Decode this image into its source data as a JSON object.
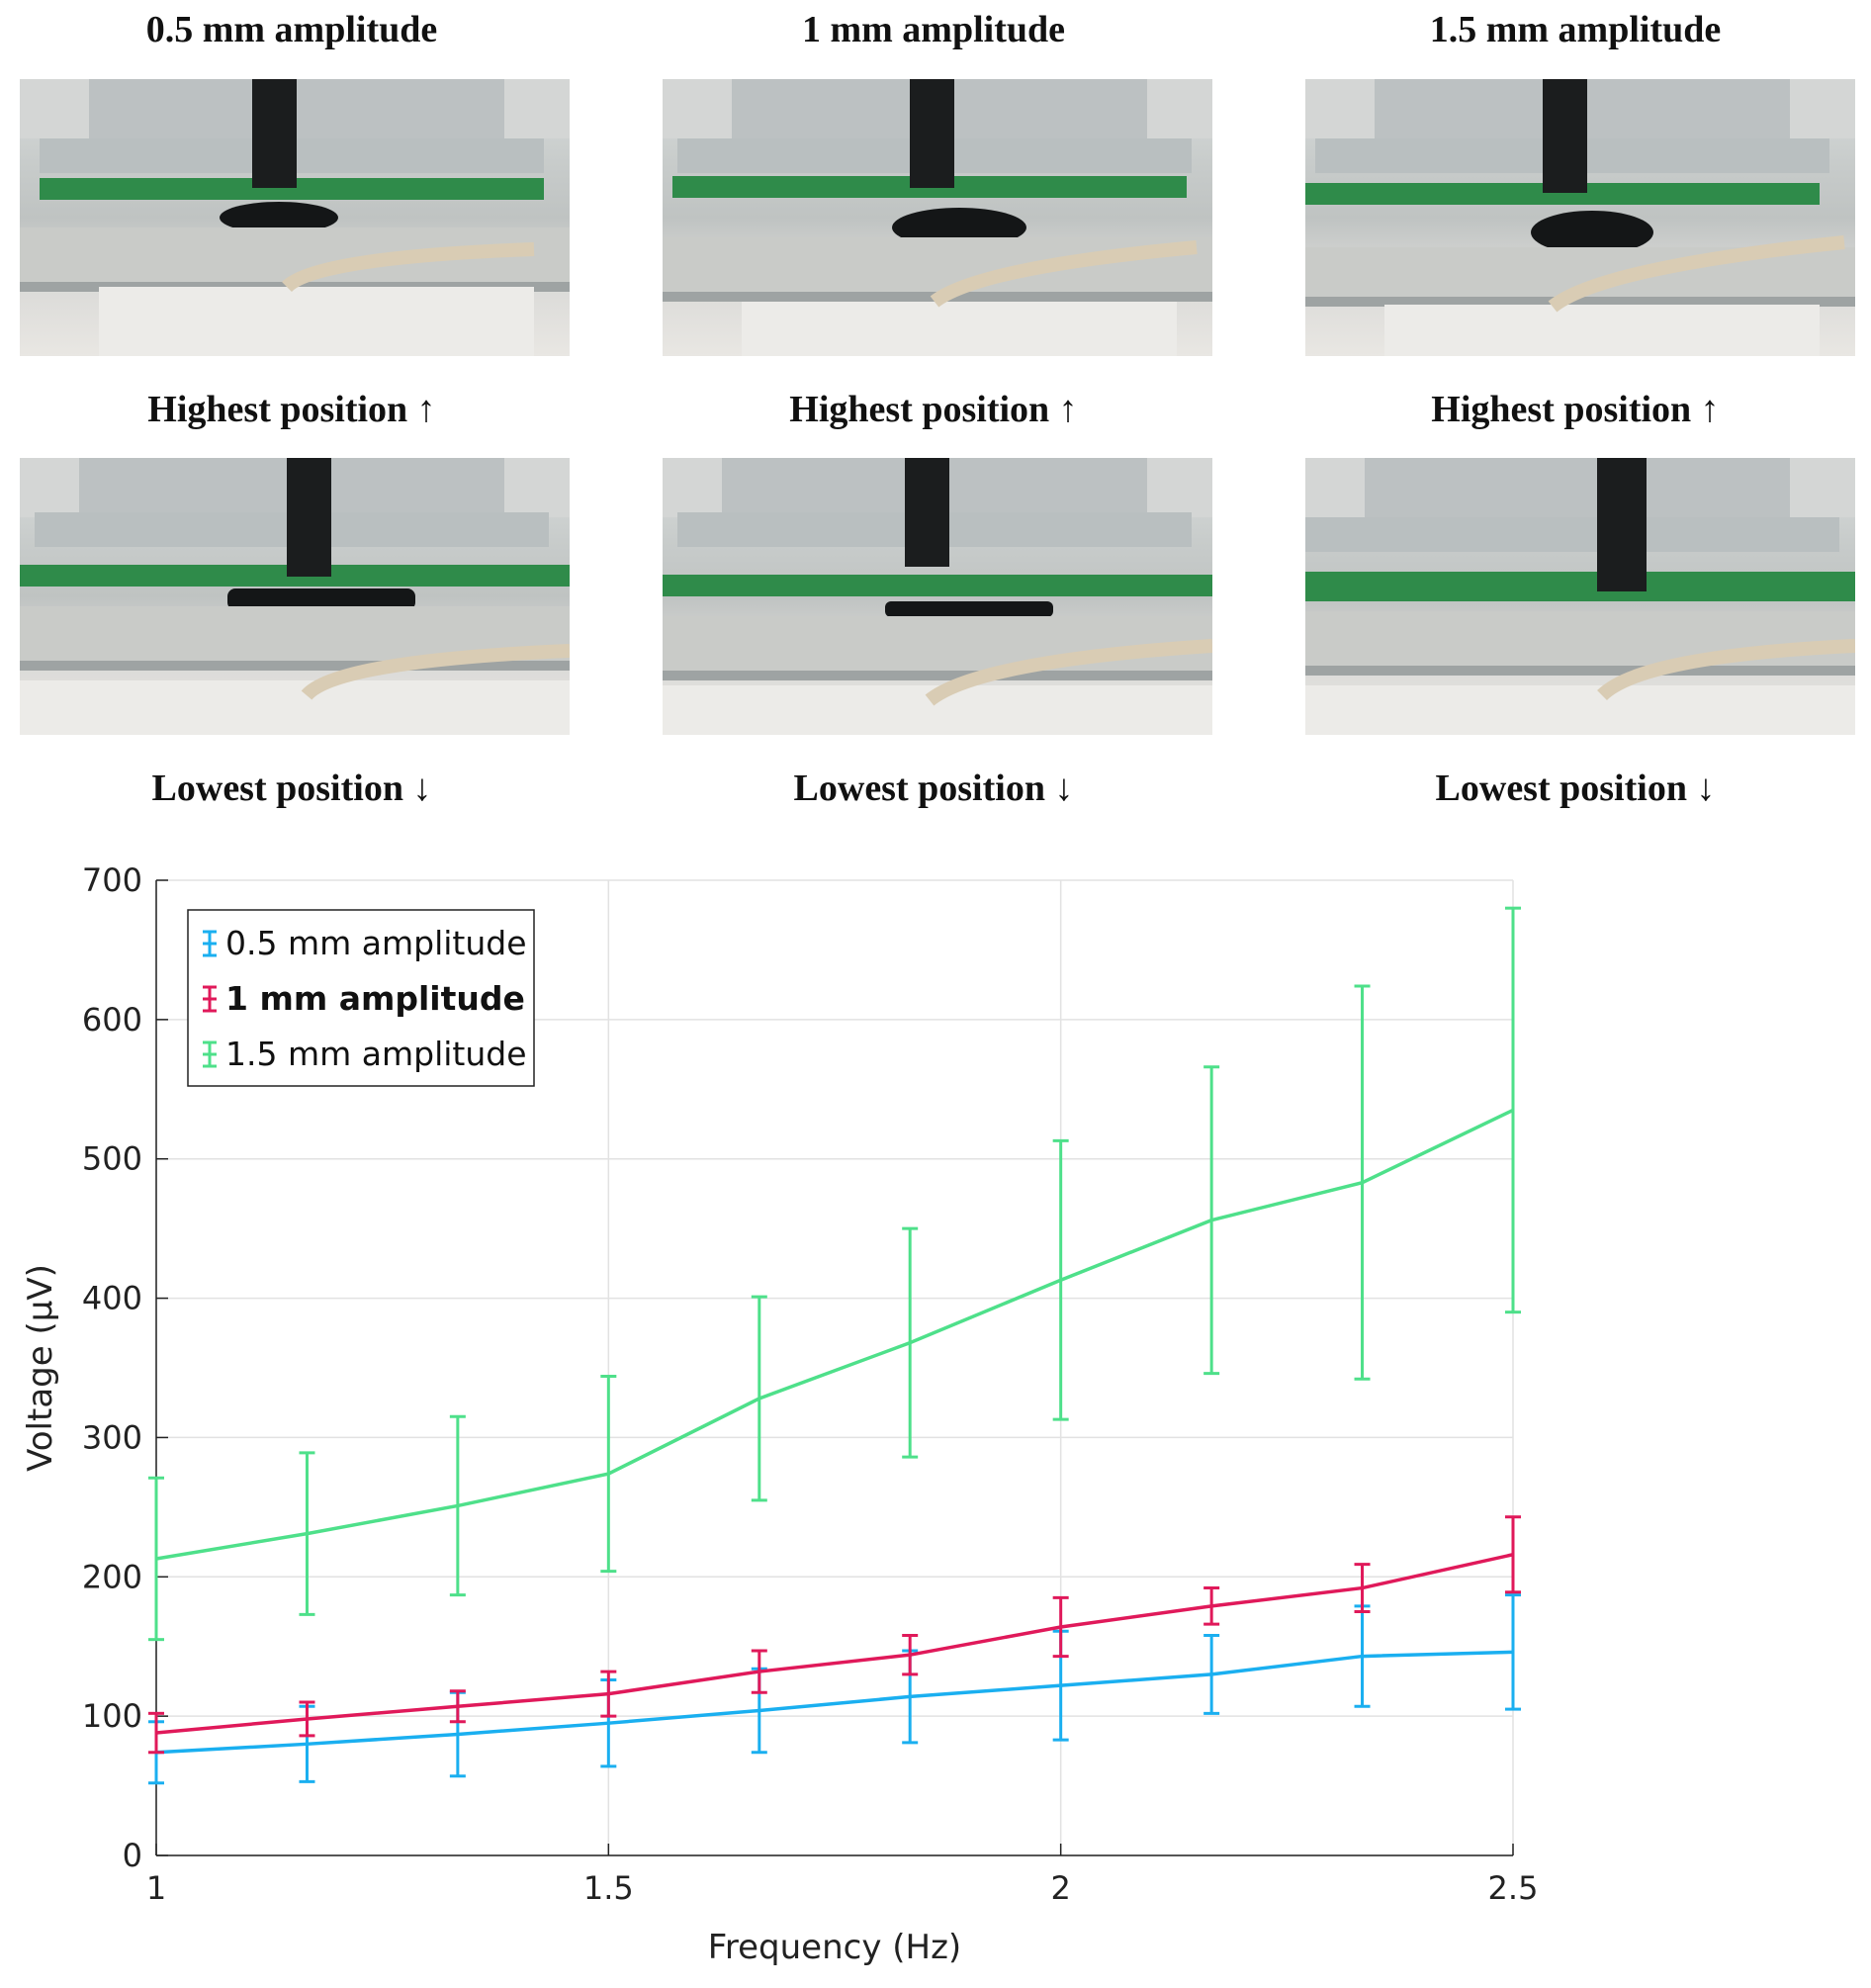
{
  "panels": {
    "columns": [
      {
        "title": "0.5 mm amplitude",
        "top_caption": "Highest position ↑",
        "bottom_caption": "Lowest position ↓"
      },
      {
        "title": "1 mm amplitude",
        "top_caption": "Highest position ↑",
        "bottom_caption": "Lowest position ↓"
      },
      {
        "title": "1.5 mm amplitude",
        "top_caption": "Highest position ↑",
        "bottom_caption": "Lowest position ↓"
      }
    ]
  },
  "chart_data": {
    "type": "line",
    "xlabel": "Frequency (Hz)",
    "ylabel": "Voltage (µV)",
    "xlim": [
      1,
      2.5
    ],
    "ylim": [
      0,
      700
    ],
    "xticks": [
      1,
      1.5,
      2,
      2.5
    ],
    "xtick_labels": [
      "1",
      "1.5",
      "2",
      "2.5"
    ],
    "yticks": [
      0,
      100,
      200,
      300,
      400,
      500,
      600,
      700
    ],
    "ytick_labels": [
      "0",
      "100",
      "200",
      "300",
      "400",
      "500",
      "600",
      "700"
    ],
    "grid": true,
    "legend": "top-left",
    "x": [
      1.0,
      1.1667,
      1.3333,
      1.5,
      1.6667,
      1.8333,
      2.0,
      2.1667,
      2.3333,
      2.5
    ],
    "series": [
      {
        "name": "0.5 mm amplitude",
        "color": "#1aaff0",
        "bold": false,
        "values": [
          74,
          80,
          87,
          95,
          104,
          114,
          122,
          130,
          143,
          146
        ],
        "errors": [
          22,
          27,
          30,
          31,
          30,
          33,
          39,
          28,
          36,
          41
        ]
      },
      {
        "name": "1 mm amplitude",
        "color": "#e0195a",
        "bold": true,
        "values": [
          88,
          98,
          107,
          116,
          132,
          144,
          164,
          179,
          192,
          216
        ],
        "errors": [
          14,
          12,
          11,
          16,
          15,
          14,
          21,
          13,
          17,
          27
        ]
      },
      {
        "name": "1.5 mm amplitude",
        "color": "#4ee08a",
        "bold": false,
        "values": [
          213,
          231,
          251,
          274,
          328,
          368,
          413,
          456,
          483,
          535
        ],
        "errors": [
          58,
          58,
          64,
          70,
          73,
          82,
          100,
          110,
          141,
          145
        ]
      }
    ]
  }
}
